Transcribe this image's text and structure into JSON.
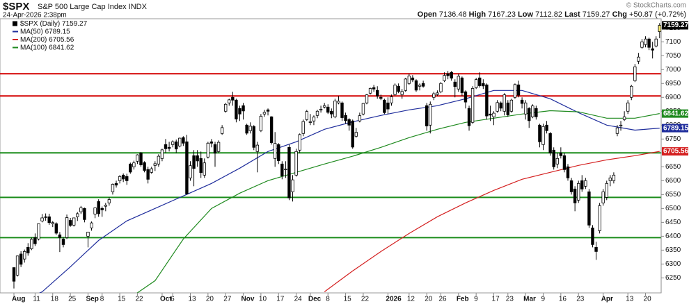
{
  "chart_data": {
    "type": "candlestick",
    "symbol": "$SPX",
    "subtitle": "S&P 500 Large Cap Index INDX",
    "timestamp": "24-Apr-2026 2:38pm",
    "credit": "© StockCharts.com",
    "quote_labels": {
      "open": "Open",
      "high": "High",
      "low": "Low",
      "last": "Last",
      "chg": "Chg"
    },
    "change": "+50.87 (+0.72%)",
    "series_name": "$SPX (Daily)",
    "up_color": "#ffffff",
    "down_color": "#000000",
    "last_color": "#f7e96b",
    "ylim": [
      6196,
      7183
    ],
    "yticks": [
      6250,
      6300,
      6350,
      6400,
      6450,
      6500,
      6550,
      6600,
      6650,
      6700,
      6750,
      6800,
      6850,
      6900,
      6950,
      7000,
      7050,
      7100,
      7150
    ],
    "xticks": [
      {
        "value": 0,
        "label": "Aug"
      },
      {
        "value": 6,
        "label": "11"
      },
      {
        "value": 11,
        "label": "18"
      },
      {
        "value": 16,
        "label": "25"
      },
      {
        "value": 21,
        "label": "Sep"
      },
      {
        "value": 25,
        "label": "8"
      },
      {
        "value": 30,
        "label": "15"
      },
      {
        "value": 35,
        "label": "22"
      },
      {
        "value": 42,
        "label": "Oct"
      },
      {
        "value": 45,
        "label": "6"
      },
      {
        "value": 50,
        "label": "13"
      },
      {
        "value": 55,
        "label": "20"
      },
      {
        "value": 60,
        "label": "27"
      },
      {
        "value": 65,
        "label": "Nov"
      },
      {
        "value": 70,
        "label": "10"
      },
      {
        "value": 75,
        "label": "17"
      },
      {
        "value": 80,
        "label": "24"
      },
      {
        "value": 84,
        "label": "Dec"
      },
      {
        "value": 89,
        "label": "8"
      },
      {
        "value": 94,
        "label": "15"
      },
      {
        "value": 99,
        "label": "22"
      },
      {
        "value": 106,
        "label": "2026"
      },
      {
        "value": 112,
        "label": "12"
      },
      {
        "value": 117,
        "label": "20"
      },
      {
        "value": 121,
        "label": "26"
      },
      {
        "value": 126,
        "label": "Feb"
      },
      {
        "value": 131,
        "label": "9"
      },
      {
        "value": 136,
        "label": "17"
      },
      {
        "value": 140,
        "label": "23"
      },
      {
        "value": 145,
        "label": "Mar"
      },
      {
        "value": 150,
        "label": "9"
      },
      {
        "value": 155,
        "label": "16"
      },
      {
        "value": 160,
        "label": "23"
      },
      {
        "value": 167,
        "label": "Apr"
      },
      {
        "value": 174,
        "label": "13"
      },
      {
        "value": 179,
        "label": "20"
      }
    ],
    "levels": [
      {
        "value": 6985,
        "color": "#d40000"
      },
      {
        "value": 6905,
        "color": "#d40000"
      },
      {
        "value": 6700,
        "color": "#1a8c1a"
      },
      {
        "value": 6540,
        "color": "#1a8c1a"
      },
      {
        "value": 6395,
        "color": "#1a8c1a"
      }
    ],
    "ma": [
      {
        "name": "MA(50)",
        "color": "#1f2d9c",
        "x": [
          0,
          8,
          16,
          24,
          32,
          40,
          48,
          56,
          64,
          72,
          80,
          88,
          96,
          104,
          112,
          120,
          128,
          136,
          144,
          152,
          160,
          168,
          176,
          183
        ],
        "values": [
          6150,
          6200,
          6290,
          6385,
          6455,
          6500,
          6545,
          6590,
          6645,
          6705,
          6740,
          6785,
          6812,
          6835,
          6855,
          6870,
          6895,
          6925,
          6925,
          6895,
          6845,
          6800,
          6782,
          6789.15
        ]
      },
      {
        "name": "MA(200)",
        "color": "#d42020",
        "x": [
          0,
          8,
          16,
          24,
          32,
          40,
          48,
          56,
          64,
          72,
          80,
          88,
          96,
          104,
          112,
          120,
          128,
          136,
          144,
          152,
          160,
          168,
          176,
          183
        ],
        "values": [
          null,
          null,
          null,
          null,
          null,
          null,
          null,
          null,
          null,
          null,
          null,
          6200,
          6275,
          6345,
          6410,
          6470,
          6520,
          6565,
          6605,
          6630,
          6655,
          6675,
          6690,
          6705.56
        ]
      },
      {
        "name": "MA(100)",
        "color": "#1f8a1f",
        "x": [
          0,
          8,
          16,
          24,
          32,
          40,
          48,
          56,
          64,
          72,
          80,
          88,
          96,
          104,
          112,
          120,
          128,
          136,
          144,
          152,
          160,
          168,
          176,
          183
        ],
        "values": [
          null,
          null,
          null,
          null,
          6170,
          6240,
          6390,
          6500,
          6555,
          6600,
          6630,
          6660,
          6688,
          6720,
          6755,
          6785,
          6810,
          6825,
          6840,
          6852,
          6848,
          6825,
          6825,
          6841.62
        ]
      }
    ],
    "ohlc": [
      [
        6287,
        6288,
        6212,
        6238
      ],
      [
        6260,
        6330,
        6255,
        6329
      ],
      [
        6336,
        6346,
        6289,
        6299
      ],
      [
        6318,
        6352,
        6305,
        6345
      ],
      [
        6360,
        6375,
        6330,
        6340
      ],
      [
        6355,
        6395,
        6350,
        6389
      ],
      [
        6395,
        6410,
        6365,
        6373
      ],
      [
        6390,
        6446,
        6385,
        6445
      ],
      [
        6455,
        6480,
        6450,
        6466
      ],
      [
        6470,
        6482,
        6456,
        6468
      ],
      [
        6470,
        6481,
        6441,
        6449
      ],
      [
        6445,
        6455,
        6433,
        6449
      ],
      [
        6445,
        6450,
        6405,
        6411
      ],
      [
        6405,
        6415,
        6343,
        6395
      ],
      [
        6390,
        6397,
        6360,
        6370
      ],
      [
        6395,
        6478,
        6390,
        6467
      ],
      [
        6457,
        6466,
        6434,
        6439
      ],
      [
        6440,
        6467,
        6435,
        6466
      ],
      [
        6470,
        6487,
        6455,
        6481
      ],
      [
        6488,
        6509,
        6480,
        6502
      ],
      [
        6500,
        6503,
        6450,
        6460
      ],
      [
        6400,
        6416,
        6360,
        6415
      ],
      [
        6430,
        6453,
        6420,
        6448
      ],
      [
        6480,
        6504,
        6465,
        6502
      ],
      [
        6525,
        6533,
        6470,
        6481
      ],
      [
        6500,
        6507,
        6470,
        6495
      ],
      [
        6508,
        6520,
        6490,
        6512
      ],
      [
        6520,
        6540,
        6510,
        6532
      ],
      [
        6560,
        6590,
        6550,
        6587
      ],
      [
        6590,
        6600,
        6575,
        6584
      ],
      [
        6600,
        6620,
        6590,
        6615
      ],
      [
        6620,
        6626,
        6595,
        6606
      ],
      [
        6615,
        6625,
        6585,
        6600
      ],
      [
        6660,
        6665,
        6625,
        6631
      ],
      [
        6650,
        6672,
        6640,
        6664
      ],
      [
        6670,
        6695,
        6660,
        6693
      ],
      [
        6700,
        6703,
        6650,
        6657
      ],
      [
        6665,
        6670,
        6630,
        6637
      ],
      [
        6640,
        6650,
        6590,
        6605
      ],
      [
        6630,
        6650,
        6625,
        6643
      ],
      [
        6655,
        6670,
        6635,
        6661
      ],
      [
        6660,
        6695,
        6650,
        6688
      ],
      [
        6680,
        6715,
        6670,
        6711
      ],
      [
        6730,
        6750,
        6700,
        6715
      ],
      [
        6720,
        6740,
        6705,
        6716
      ],
      [
        6730,
        6745,
        6720,
        6740
      ],
      [
        6740,
        6748,
        6700,
        6714
      ],
      [
        6725,
        6755,
        6720,
        6753
      ],
      [
        6755,
        6760,
        6725,
        6735
      ],
      [
        6740,
        6765,
        6550,
        6552
      ],
      [
        6610,
        6670,
        6600,
        6654
      ],
      [
        6690,
        6710,
        6580,
        6644
      ],
      [
        6690,
        6710,
        6650,
        6671
      ],
      [
        6680,
        6705,
        6610,
        6629
      ],
      [
        6620,
        6680,
        6610,
        6664
      ],
      [
        6685,
        6740,
        6680,
        6735
      ],
      [
        6740,
        6750,
        6720,
        6735
      ],
      [
        6730,
        6740,
        6650,
        6699
      ],
      [
        6705,
        6745,
        6700,
        6738
      ],
      [
        6770,
        6800,
        6765,
        6791
      ],
      [
        6850,
        6880,
        6845,
        6875
      ],
      [
        6880,
        6895,
        6870,
        6891
      ],
      [
        6900,
        6920,
        6870,
        6890
      ],
      [
        6890,
        6895,
        6810,
        6822
      ],
      [
        6860,
        6870,
        6815,
        6840
      ],
      [
        6870,
        6880,
        6820,
        6851
      ],
      [
        6800,
        6805,
        6765,
        6771
      ],
      [
        6780,
        6810,
        6770,
        6796
      ],
      [
        6795,
        6800,
        6710,
        6720
      ],
      [
        6705,
        6740,
        6630,
        6728
      ],
      [
        6780,
        6840,
        6775,
        6832
      ],
      [
        6840,
        6855,
        6830,
        6846
      ],
      [
        6855,
        6860,
        6835,
        6850
      ],
      [
        6830,
        6832,
        6730,
        6737
      ],
      [
        6680,
        6775,
        6650,
        6734
      ],
      [
        6730,
        6735,
        6660,
        6672
      ],
      [
        6660,
        6670,
        6605,
        6617
      ],
      [
        6640,
        6670,
        6610,
        6642
      ],
      [
        6720,
        6730,
        6530,
        6538
      ],
      [
        6560,
        6620,
        6525,
        6603
      ],
      [
        6620,
        6715,
        6615,
        6705
      ],
      [
        6710,
        6770,
        6700,
        6766
      ],
      [
        6770,
        6820,
        6760,
        6813
      ],
      [
        6820,
        6855,
        6815,
        6849
      ],
      [
        6810,
        6840,
        6800,
        6812
      ],
      [
        6815,
        6835,
        6800,
        6829
      ],
      [
        6835,
        6855,
        6825,
        6850
      ],
      [
        6855,
        6870,
        6845,
        6857
      ],
      [
        6865,
        6880,
        6860,
        6870
      ],
      [
        6865,
        6875,
        6840,
        6846
      ],
      [
        6850,
        6860,
        6825,
        6840
      ],
      [
        6830,
        6895,
        6825,
        6887
      ],
      [
        6880,
        6905,
        6875,
        6886
      ],
      [
        6880,
        6885,
        6815,
        6827
      ],
      [
        6835,
        6845,
        6805,
        6816
      ],
      [
        6820,
        6825,
        6780,
        6800
      ],
      [
        6815,
        6820,
        6715,
        6721
      ],
      [
        6760,
        6790,
        6755,
        6774
      ],
      [
        6815,
        6845,
        6810,
        6834
      ],
      [
        6840,
        6880,
        6835,
        6878
      ],
      [
        6880,
        6912,
        6875,
        6909
      ],
      [
        6915,
        6935,
        6910,
        6932
      ],
      [
        6935,
        6945,
        6920,
        6930
      ],
      [
        6925,
        6940,
        6895,
        6905
      ],
      [
        6900,
        6910,
        6890,
        6896
      ],
      [
        6890,
        6895,
        6840,
        6845
      ],
      [
        6880,
        6900,
        6840,
        6858
      ],
      [
        6880,
        6910,
        6870,
        6902
      ],
      [
        6910,
        6950,
        6905,
        6944
      ],
      [
        6940,
        6950,
        6915,
        6921
      ],
      [
        6910,
        6930,
        6895,
        6921
      ],
      [
        6925,
        6970,
        6920,
        6966
      ],
      [
        6950,
        6985,
        6945,
        6977
      ],
      [
        6970,
        6980,
        6955,
        6963
      ],
      [
        6960,
        6965,
        6920,
        6926
      ],
      [
        6940,
        6950,
        6925,
        6944
      ],
      [
        6950,
        6960,
        6935,
        6940
      ],
      [
        6870,
        6880,
        6780,
        6797
      ],
      [
        6800,
        6885,
        6770,
        6875
      ],
      [
        6900,
        6920,
        6890,
        6913
      ],
      [
        6910,
        6925,
        6905,
        6916
      ],
      [
        6920,
        6955,
        6915,
        6950
      ],
      [
        6960,
        6990,
        6955,
        6979
      ],
      [
        6985,
        6995,
        6965,
        6978
      ],
      [
        6990,
        6995,
        6960,
        6969
      ],
      [
        6955,
        6965,
        6900,
        6939
      ],
      [
        6930,
        6985,
        6920,
        6976
      ],
      [
        6970,
        6975,
        6905,
        6917
      ],
      [
        6920,
        6925,
        6860,
        6883
      ],
      [
        6860,
        6870,
        6780,
        6798
      ],
      [
        6810,
        6940,
        6805,
        6932
      ],
      [
        6935,
        6970,
        6930,
        6964
      ],
      [
        6970,
        6990,
        6935,
        6942
      ],
      [
        6950,
        6965,
        6930,
        6941
      ],
      [
        6945,
        6950,
        6820,
        6833
      ],
      [
        6840,
        6870,
        6815,
        6836
      ],
      [
        6830,
        6850,
        6800,
        6843
      ],
      [
        6850,
        6890,
        6845,
        6881
      ],
      [
        6880,
        6885,
        6850,
        6861
      ],
      [
        6850,
        6915,
        6835,
        6909
      ],
      [
        6880,
        6890,
        6830,
        6837
      ],
      [
        6850,
        6895,
        6845,
        6890
      ],
      [
        6900,
        6950,
        6895,
        6946
      ],
      [
        6945,
        6960,
        6900,
        6908
      ],
      [
        6890,
        6900,
        6860,
        6878
      ],
      [
        6840,
        6890,
        6820,
        6880
      ],
      [
        6860,
        6865,
        6790,
        6816
      ],
      [
        6830,
        6875,
        6825,
        6869
      ],
      [
        6860,
        6870,
        6820,
        6830
      ],
      [
        6800,
        6805,
        6720,
        6740
      ],
      [
        6730,
        6805,
        6710,
        6795
      ],
      [
        6800,
        6815,
        6770,
        6780
      ],
      [
        6770,
        6775,
        6690,
        6700
      ],
      [
        6710,
        6720,
        6640,
        6650
      ],
      [
        6660,
        6700,
        6645,
        6680
      ],
      [
        6700,
        6720,
        6680,
        6690
      ],
      [
        6690,
        6700,
        6630,
        6640
      ],
      [
        6650,
        6660,
        6600,
        6610
      ],
      [
        6600,
        6610,
        6550,
        6560
      ],
      [
        6570,
        6580,
        6490,
        6520
      ],
      [
        6530,
        6600,
        6520,
        6590
      ],
      [
        6600,
        6620,
        6560,
        6570
      ],
      [
        6580,
        6610,
        6570,
        6600
      ],
      [
        6560,
        6570,
        6430,
        6440
      ],
      [
        6430,
        6440,
        6360,
        6370
      ],
      [
        6360,
        6380,
        6315,
        6345
      ],
      [
        6420,
        6520,
        6410,
        6510
      ],
      [
        6520,
        6570,
        6510,
        6560
      ],
      [
        6540,
        6600,
        6530,
        6590
      ],
      [
        6600,
        6620,
        6580,
        6610
      ],
      [
        6600,
        6630,
        6590,
        6620
      ],
      [
        6770,
        6800,
        6760,
        6790
      ],
      [
        6800,
        6815,
        6780,
        6800
      ],
      [
        6820,
        6850,
        6815,
        6830
      ],
      [
        6850,
        6890,
        6840,
        6880
      ],
      [
        6900,
        6945,
        6890,
        6940
      ],
      [
        6960,
        7020,
        6955,
        7010
      ],
      [
        7030,
        7060,
        7020,
        7045
      ],
      [
        7080,
        7110,
        7075,
        7100
      ],
      [
        7090,
        7120,
        7080,
        7110
      ],
      [
        7110,
        7115,
        7070,
        7080
      ],
      [
        7075,
        7100,
        7040,
        7070
      ],
      [
        7085,
        7120,
        7080,
        7110
      ],
      [
        7136.48,
        7167.23,
        7112.82,
        7159.27
      ]
    ]
  }
}
